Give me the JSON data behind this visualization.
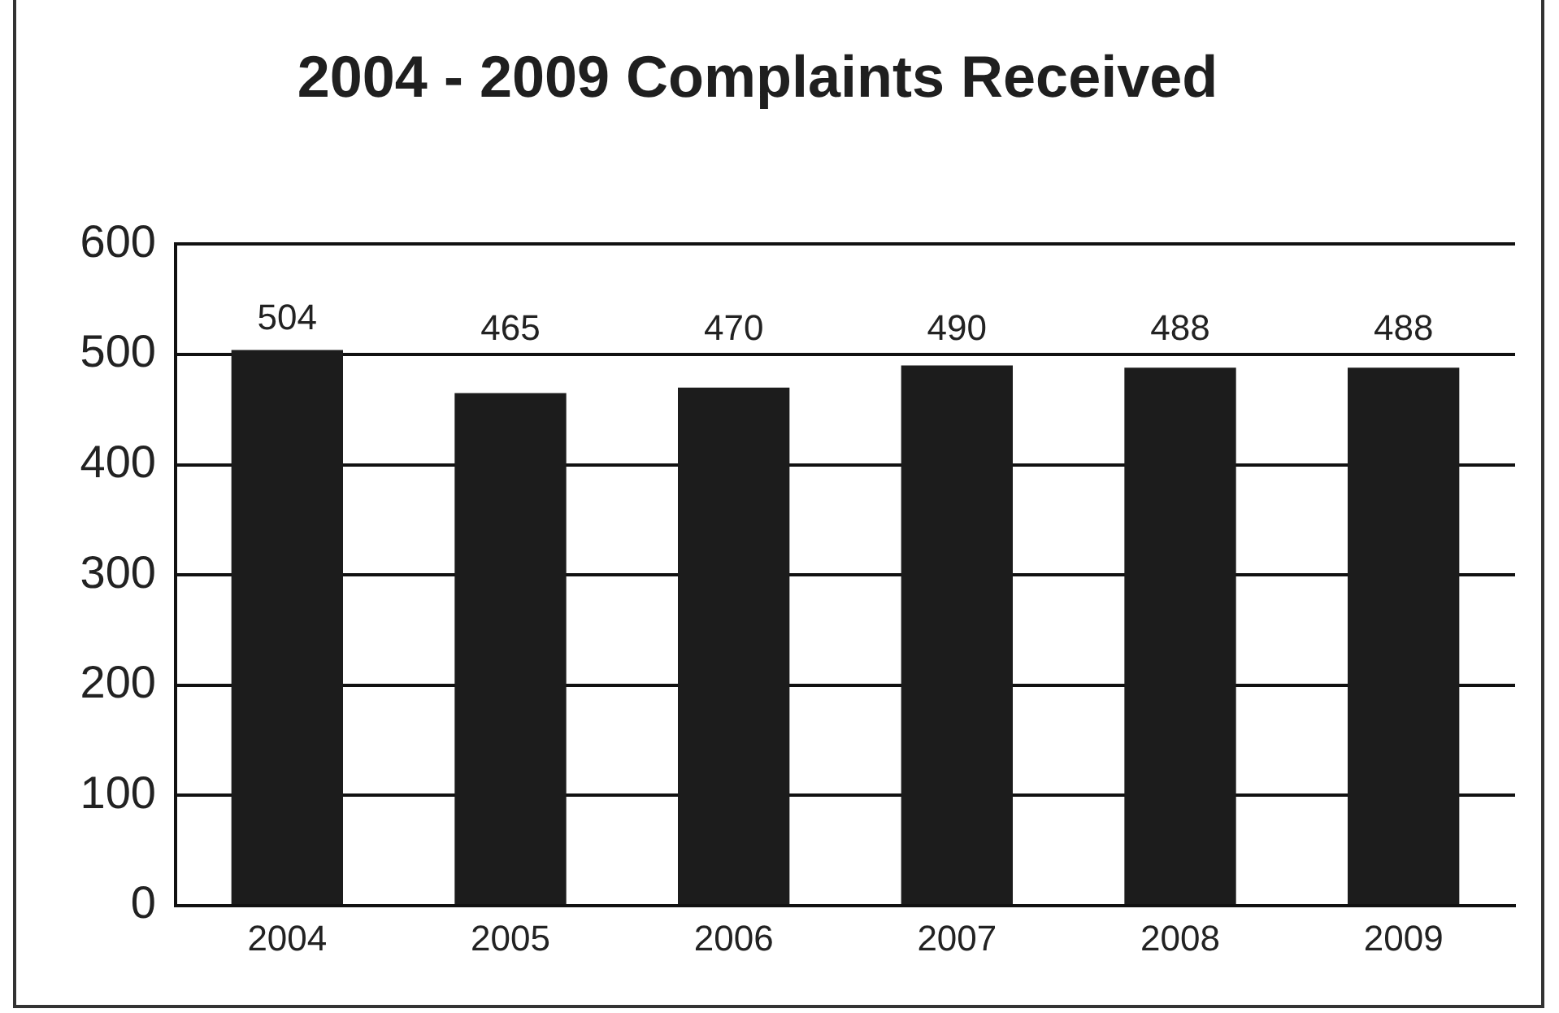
{
  "chart_data": {
    "type": "bar",
    "title": "2004 - 2009 Complaints Received",
    "categories": [
      "2004",
      "2005",
      "2006",
      "2007",
      "2008",
      "2009"
    ],
    "values": [
      504,
      465,
      470,
      490,
      488,
      488
    ],
    "color": "#1c1c1c",
    "ylim": [
      0,
      600
    ],
    "yticks": [
      0,
      100,
      200,
      300,
      400,
      500,
      600
    ],
    "grid": "y",
    "data_labels": true
  }
}
